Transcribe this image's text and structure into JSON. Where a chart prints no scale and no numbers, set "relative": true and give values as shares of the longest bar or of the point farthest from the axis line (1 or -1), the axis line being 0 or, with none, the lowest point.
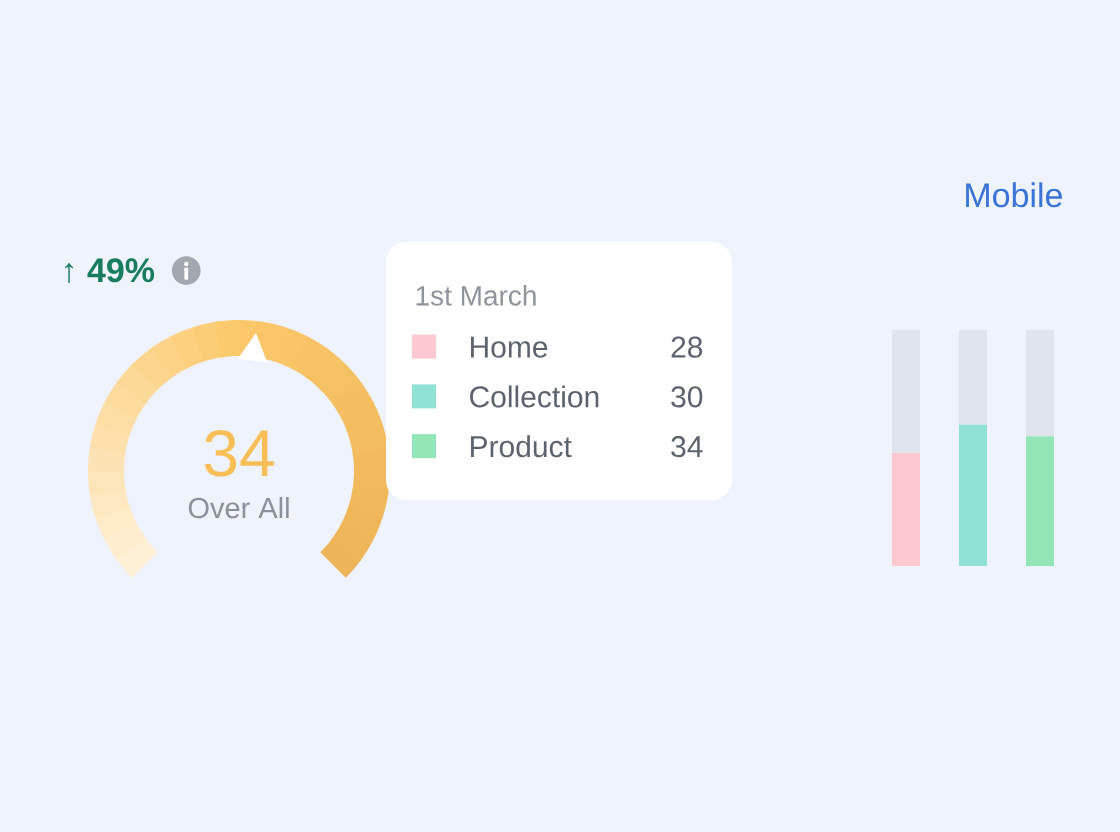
{
  "chart_data": [
    {
      "type": "other",
      "title": "↑ 49%",
      "annotations": [
        "34",
        "Over All"
      ]
    },
    {
      "type": "other",
      "title": "1st March",
      "categories": [
        "Home",
        "Collection",
        "Product"
      ],
      "values": [
        28,
        30,
        34
      ],
      "data_labels": true
    },
    {
      "type": "bar",
      "title": "Mobile",
      "categories": [
        null,
        null,
        null
      ],
      "relative": true,
      "stacked": true,
      "series": [
        {
          "colors": [
            "#fdc8d0",
            "#8fe0d5",
            "#93e6b5"
          ],
          "values": [
            0.48,
            0.6,
            0.55
          ]
        },
        {
          "color": "#e0e4ee",
          "values": [
            0.52,
            0.4,
            0.45
          ]
        }
      ]
    }
  ]
}
